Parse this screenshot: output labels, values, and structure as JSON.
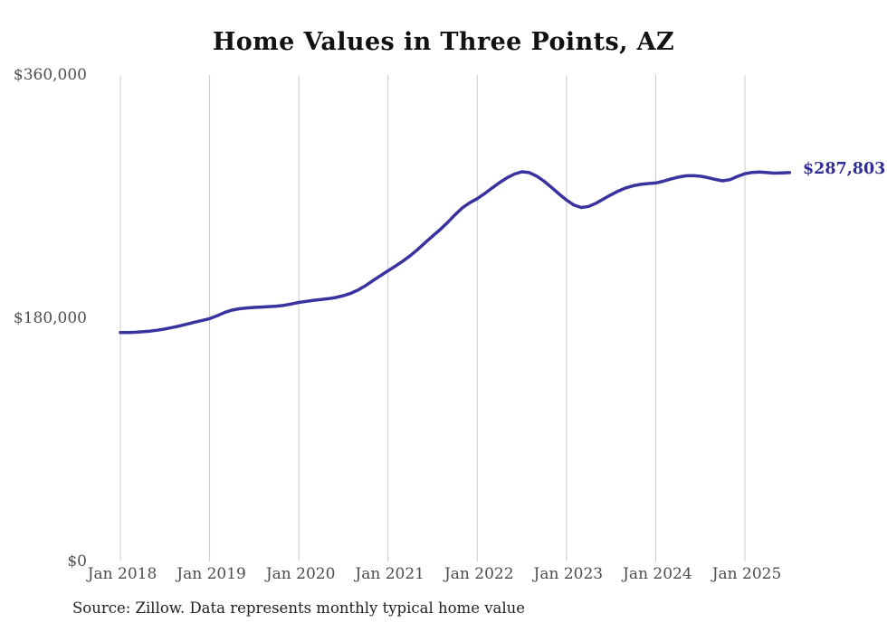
{
  "title": "Home Values in Three Points, AZ",
  "latest_value_label": "$287,803",
  "source_note": "Source: Zillow. Data represents monthly typical home value",
  "colors": {
    "line": "#38339e",
    "latest_label": "#312d96",
    "grid": "#c9c9c9",
    "axis_text": "#4d4d4d",
    "title_text": "#111111",
    "source_text": "#222222",
    "background": "#ffffff"
  },
  "chart_data": {
    "type": "line",
    "title": "Home Values in Three Points, AZ",
    "xlabel": "",
    "ylabel": "",
    "ylim": [
      0,
      360000
    ],
    "grid": "vertical-only",
    "legend": "none",
    "y_ticks": [
      {
        "value": 0,
        "label": "$0"
      },
      {
        "value": 180000,
        "label": "$180,000"
      },
      {
        "value": 360000,
        "label": "$360,000"
      }
    ],
    "x_ticks": [
      "Jan 2018",
      "Jan 2019",
      "Jan 2020",
      "Jan 2021",
      "Jan 2022",
      "Jan 2023",
      "Jan 2024",
      "Jan 2025"
    ],
    "series": [
      {
        "name": "Monthly typical home value",
        "unit": "USD",
        "final_value": 287803,
        "months": [
          "2018-01",
          "2018-02",
          "2018-03",
          "2018-04",
          "2018-05",
          "2018-06",
          "2018-07",
          "2018-08",
          "2018-09",
          "2018-10",
          "2018-11",
          "2018-12",
          "2019-01",
          "2019-02",
          "2019-03",
          "2019-04",
          "2019-05",
          "2019-06",
          "2019-07",
          "2019-08",
          "2019-09",
          "2019-10",
          "2019-11",
          "2019-12",
          "2020-01",
          "2020-02",
          "2020-03",
          "2020-04",
          "2020-05",
          "2020-06",
          "2020-07",
          "2020-08",
          "2020-09",
          "2020-10",
          "2020-11",
          "2020-12",
          "2021-01",
          "2021-02",
          "2021-03",
          "2021-04",
          "2021-05",
          "2021-06",
          "2021-07",
          "2021-08",
          "2021-09",
          "2021-10",
          "2021-11",
          "2021-12",
          "2022-01",
          "2022-02",
          "2022-03",
          "2022-04",
          "2022-05",
          "2022-06",
          "2022-07",
          "2022-08",
          "2022-09",
          "2022-10",
          "2022-11",
          "2022-12",
          "2023-01",
          "2023-02",
          "2023-03",
          "2023-04",
          "2023-05",
          "2023-06",
          "2023-07",
          "2023-08",
          "2023-09",
          "2023-10",
          "2023-11",
          "2023-12",
          "2024-01",
          "2024-02",
          "2024-03",
          "2024-04",
          "2024-05",
          "2024-06",
          "2024-07",
          "2024-08",
          "2024-09",
          "2024-10",
          "2024-11",
          "2024-12",
          "2025-01",
          "2025-02",
          "2025-03",
          "2025-04",
          "2025-05",
          "2025-06",
          "2025-07"
        ],
        "values": [
          169500,
          169400,
          169600,
          170000,
          170500,
          171200,
          172100,
          173200,
          174400,
          175700,
          177100,
          178400,
          179700,
          181800,
          184200,
          186000,
          187000,
          187600,
          188000,
          188300,
          188600,
          189000,
          189600,
          190600,
          191700,
          192500,
          193300,
          193900,
          194500,
          195400,
          196700,
          198500,
          201000,
          204200,
          208000,
          211600,
          215100,
          218600,
          222300,
          226400,
          231000,
          236000,
          240800,
          245600,
          250800,
          256500,
          261800,
          265500,
          268500,
          272300,
          276400,
          280400,
          283900,
          286700,
          288400,
          287800,
          285200,
          281400,
          276800,
          272000,
          267500,
          263800,
          262000,
          262800,
          265200,
          268300,
          271400,
          274200,
          276500,
          278100,
          279100,
          279700,
          280100,
          281400,
          283000,
          284400,
          285400,
          285600,
          285100,
          284100,
          282800,
          281700,
          282600,
          285000,
          287000,
          287900,
          288200,
          287800,
          287400,
          287600,
          287803
        ]
      }
    ]
  }
}
